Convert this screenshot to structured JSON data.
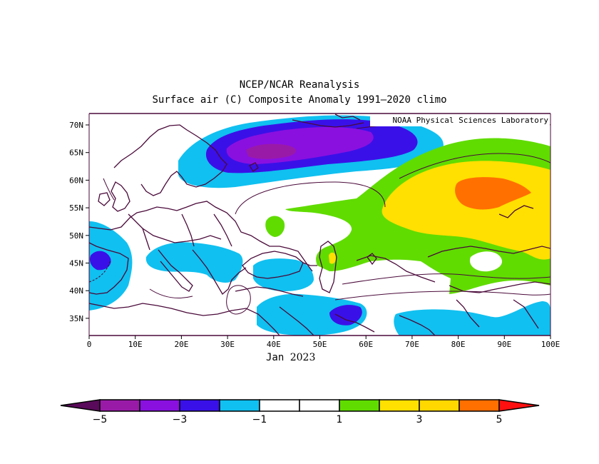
{
  "title_line1": "NCEP/NCAR Reanalysis",
  "title_line2": "Surface air (C) Composite Anomaly 1991–2020 climo",
  "credit": "NOAA Physical Sciences Laboratory",
  "period_month": "Jan",
  "period_year": "2023",
  "lat_labels": [
    "70N",
    "65N",
    "60N",
    "55N",
    "50N",
    "45N",
    "40N",
    "35N"
  ],
  "lon_labels": [
    "0",
    "10E",
    "20E",
    "30E",
    "40E",
    "50E",
    "60E",
    "70E",
    "80E",
    "90E",
    "100E"
  ],
  "colorbar": {
    "labels": [
      "−5",
      "−3",
      "−1",
      "1",
      "3",
      "5"
    ],
    "colors": [
      "#5a0a5a",
      "#9a1aa8",
      "#8a10e0",
      "#3a10e8",
      "#10c0f0",
      "#ffffff",
      "#ffffff",
      "#60dc00",
      "#ffe000",
      "#ffd800",
      "#ff7000",
      "#ff1010"
    ]
  },
  "map_colors": {
    "deep_purple": "#9a1aa8",
    "purple": "#8a10e0",
    "blue": "#3a10e8",
    "light_blue": "#10c0f0",
    "green": "#60dc00",
    "yellow": "#ffe000",
    "orange": "#ff7000",
    "coastline": "#4a0a3a"
  }
}
